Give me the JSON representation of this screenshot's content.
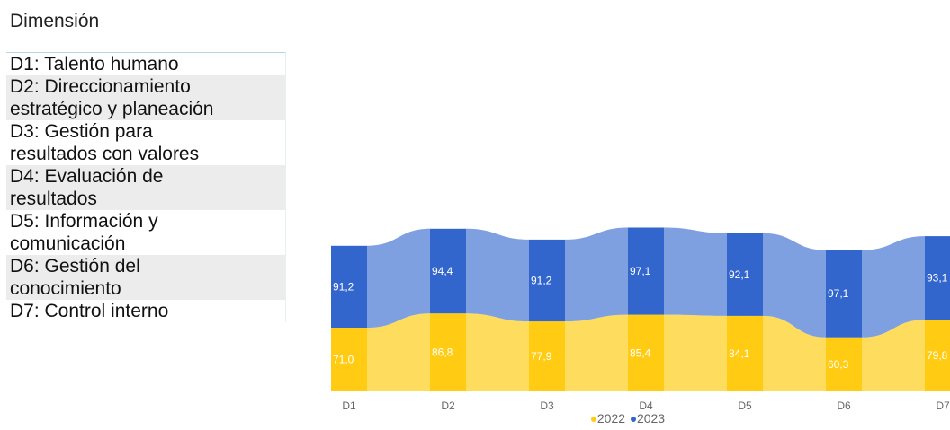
{
  "panel": {
    "title": "Dimensión",
    "rows": [
      {
        "lines": [
          "D1: Talento humano"
        ]
      },
      {
        "lines": [
          "D2: Direccionamiento",
          "estratégico y planeación"
        ]
      },
      {
        "lines": [
          "D3: Gestión para",
          "resultados con valores"
        ]
      },
      {
        "lines": [
          "D4: Evaluación de",
          "resultados"
        ]
      },
      {
        "lines": [
          "D5: Información y",
          "comunicación"
        ]
      },
      {
        "lines": [
          "D6: Gestión del",
          "conocimiento"
        ]
      },
      {
        "lines": [
          "D7: Control interno"
        ]
      }
    ]
  },
  "chart_data": {
    "type": "bar",
    "stacked": true,
    "categories": [
      "D1",
      "D2",
      "D3",
      "D4",
      "D5",
      "D6",
      "D7"
    ],
    "series": [
      {
        "name": "2022",
        "values": [
          71.0,
          86.8,
          77.9,
          85.4,
          84.1,
          60.3,
          79.8
        ],
        "labels": [
          "71,0",
          "86,8",
          "77,9",
          "85,4",
          "84,1",
          "60,3",
          "79,8"
        ],
        "color": "#FFCC13",
        "ribbon_color": "#FEDC5D"
      },
      {
        "name": "2023",
        "values": [
          91.2,
          94.4,
          91.2,
          97.1,
          92.1,
          97.1,
          93.1
        ],
        "labels": [
          "91,2",
          "94,4",
          "91,2",
          "97,1",
          "92,1",
          "97,1",
          "93,1"
        ],
        "color": "#3266CC",
        "ribbon_color": "#7E9FE0"
      }
    ],
    "legend": {
      "position": "bottom",
      "entries": [
        "2022",
        "2023"
      ]
    }
  }
}
